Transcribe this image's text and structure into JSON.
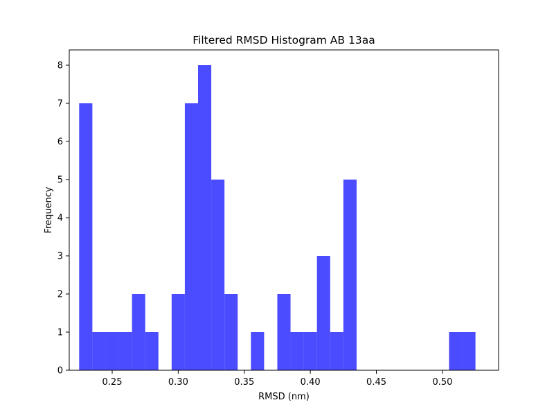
{
  "chart_data": {
    "type": "bar",
    "title": "Filtered RMSD Histogram AB 13aa",
    "xlabel": "RMSD (nm)",
    "ylabel": "Frequency",
    "bar_color": "#4b4bff",
    "xlim": [
      0.2175,
      0.5425
    ],
    "ylim": [
      0,
      8.4
    ],
    "xticks": [
      0.25,
      0.3,
      0.35,
      0.4,
      0.45,
      0.5
    ],
    "xtick_labels": [
      "0.25",
      "0.30",
      "0.35",
      "0.40",
      "0.45",
      "0.50"
    ],
    "yticks": [
      0,
      1,
      2,
      3,
      4,
      5,
      6,
      7,
      8
    ],
    "ytick_labels": [
      "0",
      "1",
      "2",
      "3",
      "4",
      "5",
      "6",
      "7",
      "8"
    ],
    "bin_width": 0.01,
    "bins": [
      {
        "x": 0.225,
        "value": 7
      },
      {
        "x": 0.235,
        "value": 1
      },
      {
        "x": 0.245,
        "value": 1
      },
      {
        "x": 0.255,
        "value": 1
      },
      {
        "x": 0.265,
        "value": 2
      },
      {
        "x": 0.275,
        "value": 1
      },
      {
        "x": 0.285,
        "value": 0
      },
      {
        "x": 0.295,
        "value": 2
      },
      {
        "x": 0.305,
        "value": 7
      },
      {
        "x": 0.315,
        "value": 8
      },
      {
        "x": 0.325,
        "value": 5
      },
      {
        "x": 0.335,
        "value": 2
      },
      {
        "x": 0.345,
        "value": 0
      },
      {
        "x": 0.355,
        "value": 1
      },
      {
        "x": 0.365,
        "value": 0
      },
      {
        "x": 0.375,
        "value": 2
      },
      {
        "x": 0.385,
        "value": 1
      },
      {
        "x": 0.395,
        "value": 1
      },
      {
        "x": 0.405,
        "value": 3
      },
      {
        "x": 0.415,
        "value": 1
      },
      {
        "x": 0.425,
        "value": 5
      },
      {
        "x": 0.435,
        "value": 0
      },
      {
        "x": 0.445,
        "value": 0
      },
      {
        "x": 0.455,
        "value": 0
      },
      {
        "x": 0.465,
        "value": 0
      },
      {
        "x": 0.475,
        "value": 0
      },
      {
        "x": 0.485,
        "value": 0
      },
      {
        "x": 0.495,
        "value": 0
      },
      {
        "x": 0.505,
        "value": 1
      },
      {
        "x": 0.515,
        "value": 1
      }
    ],
    "grid": false,
    "legend": "none"
  }
}
